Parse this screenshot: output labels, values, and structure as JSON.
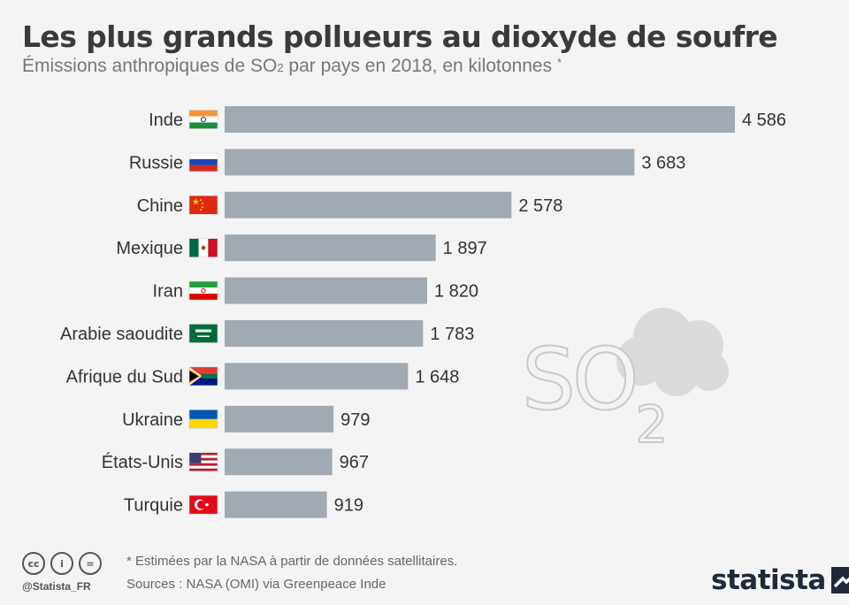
{
  "header": {
    "title": "Les plus grands pollueurs au dioxyde de soufre",
    "subtitle_pre": "Émissions anthropiques de SO",
    "subtitle_sub": "2",
    "subtitle_post": " par pays en 2018, en kilotonnes",
    "subtitle_star": "*"
  },
  "chart_data": {
    "type": "bar",
    "orientation": "horizontal",
    "categories": [
      "Inde",
      "Russie",
      "Chine",
      "Mexique",
      "Iran",
      "Arabie saoudite",
      "Afrique du Sud",
      "Ukraine",
      "États-Unis",
      "Turquie"
    ],
    "values": [
      4586,
      3683,
      2578,
      1897,
      1820,
      1783,
      1648,
      979,
      967,
      919
    ],
    "value_labels": [
      "4 586",
      "3 683",
      "2 578",
      "1 897",
      "1 820",
      "1 783",
      "1 648",
      "979",
      "967",
      "919"
    ],
    "flags": [
      "india-flag-icon",
      "russia-flag-icon",
      "china-flag-icon",
      "mexico-flag-icon",
      "iran-flag-icon",
      "saudi-arabia-flag-icon",
      "south-africa-flag-icon",
      "ukraine-flag-icon",
      "usa-flag-icon",
      "turkey-flag-icon"
    ],
    "bar_color": "#a1aab3",
    "xlim": [
      0,
      4586
    ],
    "grid": false,
    "legend": "none"
  },
  "decoration": {
    "label_main": "SO",
    "label_sub": "2",
    "icon": "cloud-icon"
  },
  "footer": {
    "footnote": "* Estimées par la NASA à partir de données satellitaires.",
    "sources": "Sources : NASA (OMI) via Greenpeace Inde",
    "handle": "@Statista_FR",
    "brand": "statista",
    "license_icons": [
      "cc-icon",
      "by-icon",
      "nd-icon"
    ],
    "license_glyphs": [
      "cc",
      "i",
      "="
    ]
  }
}
